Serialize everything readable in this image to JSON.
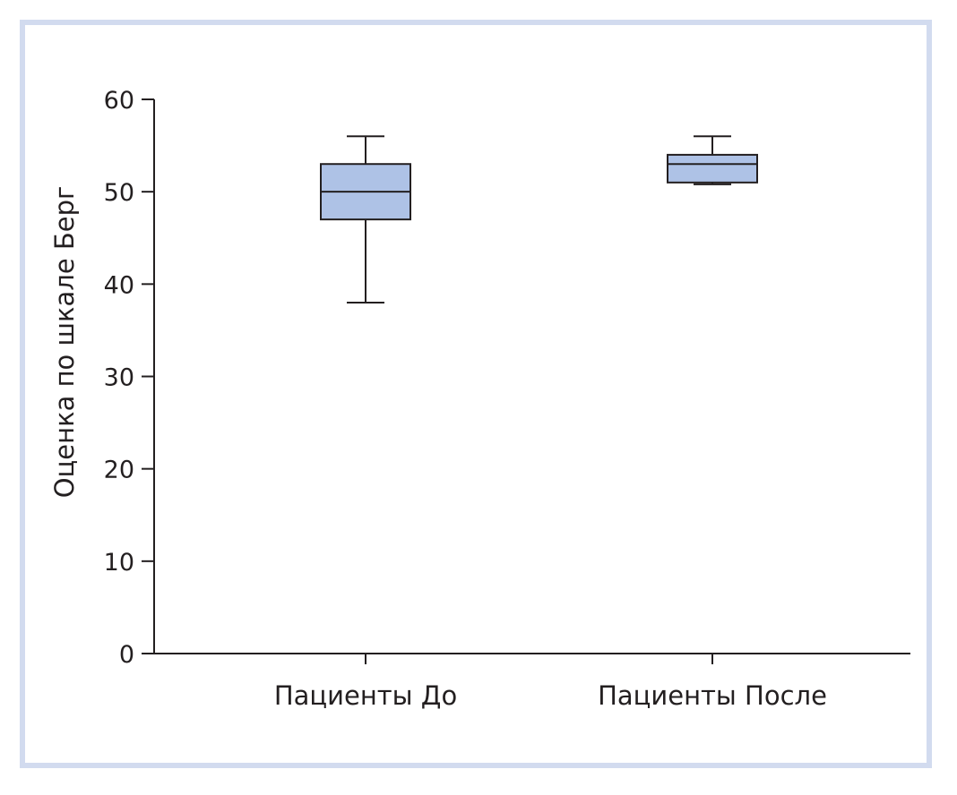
{
  "chart_data": {
    "type": "box",
    "title": "",
    "xlabel": "",
    "ylabel": "Оценка по шкале Берг",
    "ylim": [
      0,
      60
    ],
    "yticks": [
      "0",
      "10",
      "20",
      "30",
      "40",
      "50",
      "60"
    ],
    "grid": false,
    "categories": [
      "Пациенты До",
      "Пациенты После"
    ],
    "boxes": [
      {
        "category": "Пациенты До",
        "min": 38,
        "q1": 47,
        "median": 50,
        "q3": 53,
        "max": 56
      },
      {
        "category": "Пациенты После",
        "min": 50.8,
        "q1": 51,
        "median": 53,
        "q3": 54,
        "max": 56
      }
    ],
    "box_fill": "#aec2e6",
    "border_color": "#d2dbef",
    "line_color": "#231f20"
  }
}
